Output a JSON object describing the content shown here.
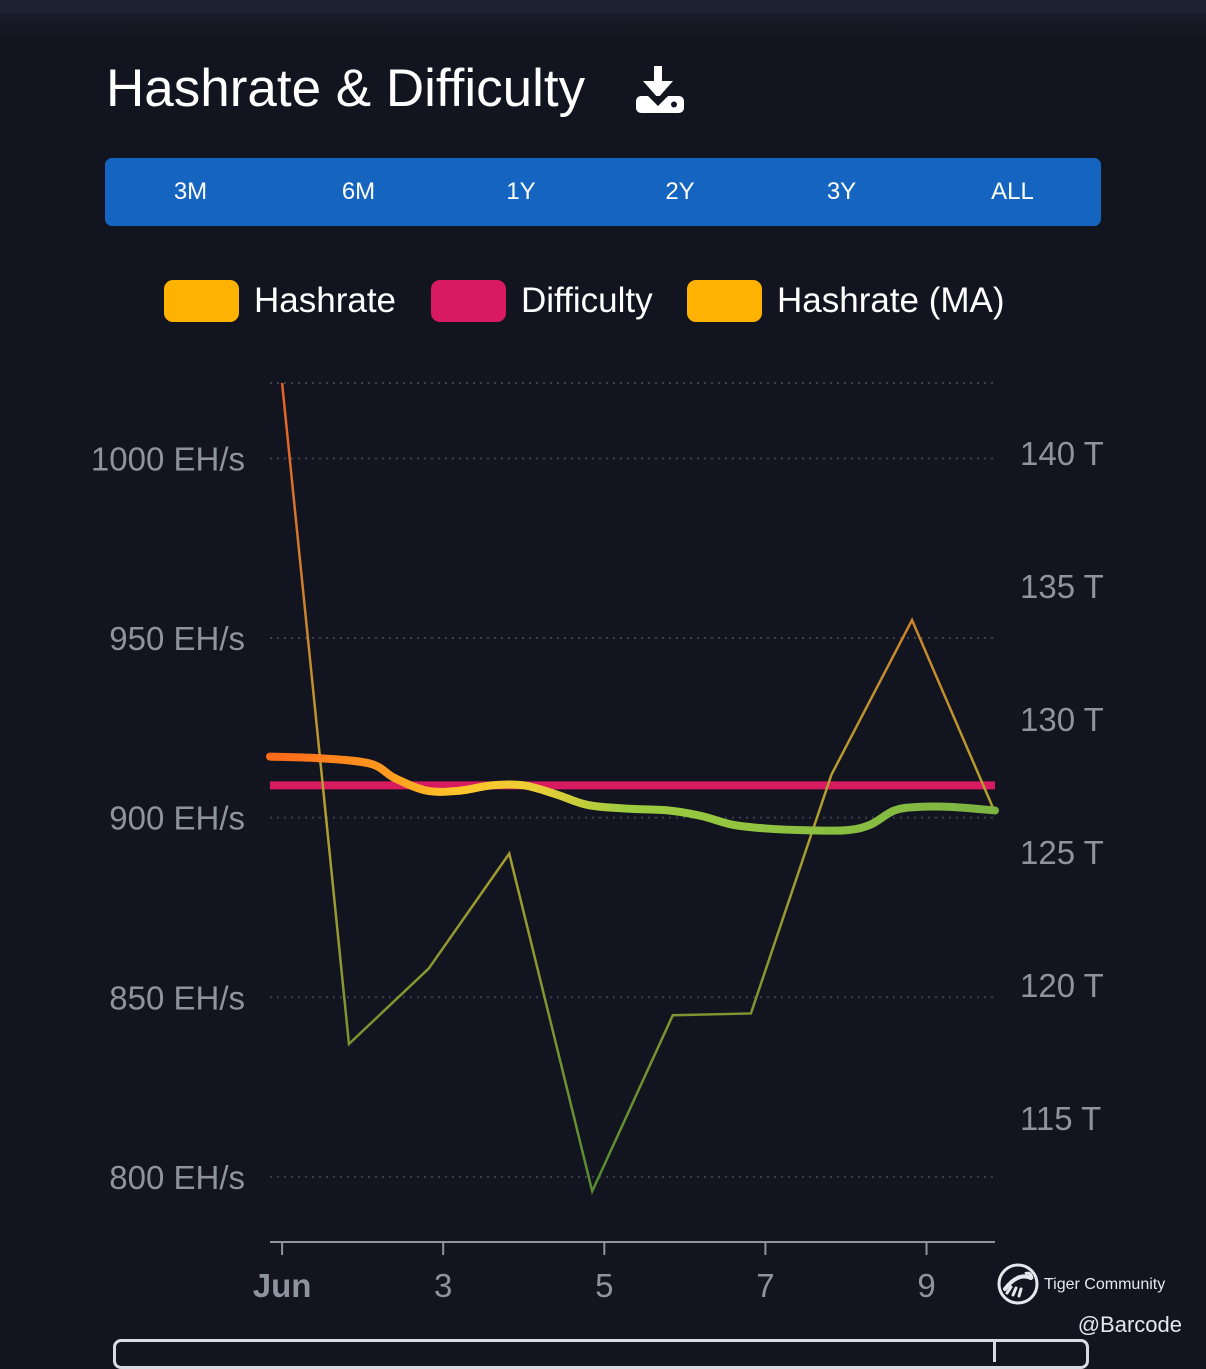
{
  "header": {
    "title": "Hashrate & Difficulty",
    "download_icon": "download-icon"
  },
  "ranges": [
    {
      "label": "3M",
      "active": true
    },
    {
      "label": "6M",
      "active": false
    },
    {
      "label": "1Y",
      "active": false
    },
    {
      "label": "2Y",
      "active": false
    },
    {
      "label": "3Y",
      "active": false
    },
    {
      "label": "ALL",
      "active": false
    }
  ],
  "watermark": {
    "brand": "Tiger Community",
    "user": "@Barcode"
  },
  "chart_data": {
    "type": "line",
    "legend": [
      {
        "name": "Hashrate",
        "color": "#ffb300"
      },
      {
        "name": "Difficulty",
        "color": "#d81b60"
      },
      {
        "name": "Hashrate (MA)",
        "color": "#ffb300"
      }
    ],
    "x_ticks": [
      "Jun",
      "3",
      "5",
      "7",
      "9"
    ],
    "x_tick_values": [
      1,
      3,
      5,
      7,
      9
    ],
    "x_range": [
      0.85,
      9.85
    ],
    "y_left": {
      "unit": "EH/s",
      "ticks": [
        "1000 EH/s",
        "950 EH/s",
        "900 EH/s",
        "850 EH/s",
        "800 EH/s"
      ],
      "tick_values": [
        1000,
        950,
        900,
        850,
        800
      ],
      "range": [
        788,
        1021
      ]
    },
    "y_right": {
      "unit": "T",
      "ticks": [
        "140 T",
        "135 T",
        "130 T",
        "125 T",
        "120 T",
        "115 T"
      ],
      "tick_values": [
        140,
        135,
        130,
        125,
        120,
        115
      ]
    },
    "series": [
      {
        "name": "Hashrate",
        "axis": "left",
        "points": [
          [
            1.0,
            1021
          ],
          [
            1.83,
            837
          ],
          [
            2.82,
            858
          ],
          [
            3.82,
            890
          ],
          [
            4.85,
            796
          ],
          [
            5.85,
            845
          ],
          [
            6.82,
            845.5
          ],
          [
            7.82,
            912
          ],
          [
            8.82,
            955
          ],
          [
            9.82,
            903
          ]
        ]
      },
      {
        "name": "Difficulty",
        "axis": "left",
        "points": [
          [
            0.85,
            909
          ],
          [
            9.85,
            909
          ]
        ]
      },
      {
        "name": "Hashrate (MA)",
        "axis": "left",
        "points": [
          [
            0.85,
            917
          ],
          [
            1.5,
            916.5
          ],
          [
            2.1,
            915
          ],
          [
            2.4,
            911
          ],
          [
            2.8,
            907.5
          ],
          [
            3.2,
            907.5
          ],
          [
            3.6,
            909
          ],
          [
            4.0,
            909
          ],
          [
            4.4,
            906.5
          ],
          [
            4.8,
            903.5
          ],
          [
            5.3,
            902.5
          ],
          [
            5.8,
            902
          ],
          [
            6.2,
            900.5
          ],
          [
            6.6,
            898
          ],
          [
            7.0,
            897
          ],
          [
            7.5,
            896.5
          ],
          [
            8.0,
            896.5
          ],
          [
            8.3,
            898
          ],
          [
            8.6,
            902
          ],
          [
            8.9,
            903
          ],
          [
            9.3,
            903
          ],
          [
            9.85,
            902
          ]
        ]
      }
    ]
  }
}
